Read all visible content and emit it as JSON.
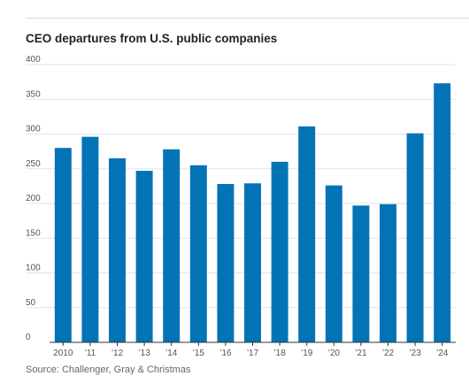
{
  "chart_data": {
    "type": "bar",
    "title": "CEO departures from U.S. public companies",
    "source": "Source: Challenger, Gray & Christmas",
    "categories": [
      "2010",
      "’11",
      "’12",
      "’13",
      "’14",
      "’15",
      "’16",
      "’17",
      "’18",
      "’19",
      "’20",
      "’21",
      "’22",
      "’23",
      "’24"
    ],
    "values": [
      280,
      296,
      265,
      247,
      278,
      255,
      228,
      229,
      260,
      311,
      226,
      197,
      199,
      301,
      373
    ],
    "xlabel": "",
    "ylabel": "",
    "ylim": [
      0,
      400
    ],
    "yticks": [
      0,
      50,
      100,
      150,
      200,
      250,
      300,
      350,
      400
    ],
    "grid": true,
    "colors": {
      "bar": "#0274b6",
      "grid": "#e3e3e3",
      "axis": "#333333",
      "tick_label": "#555555"
    }
  }
}
